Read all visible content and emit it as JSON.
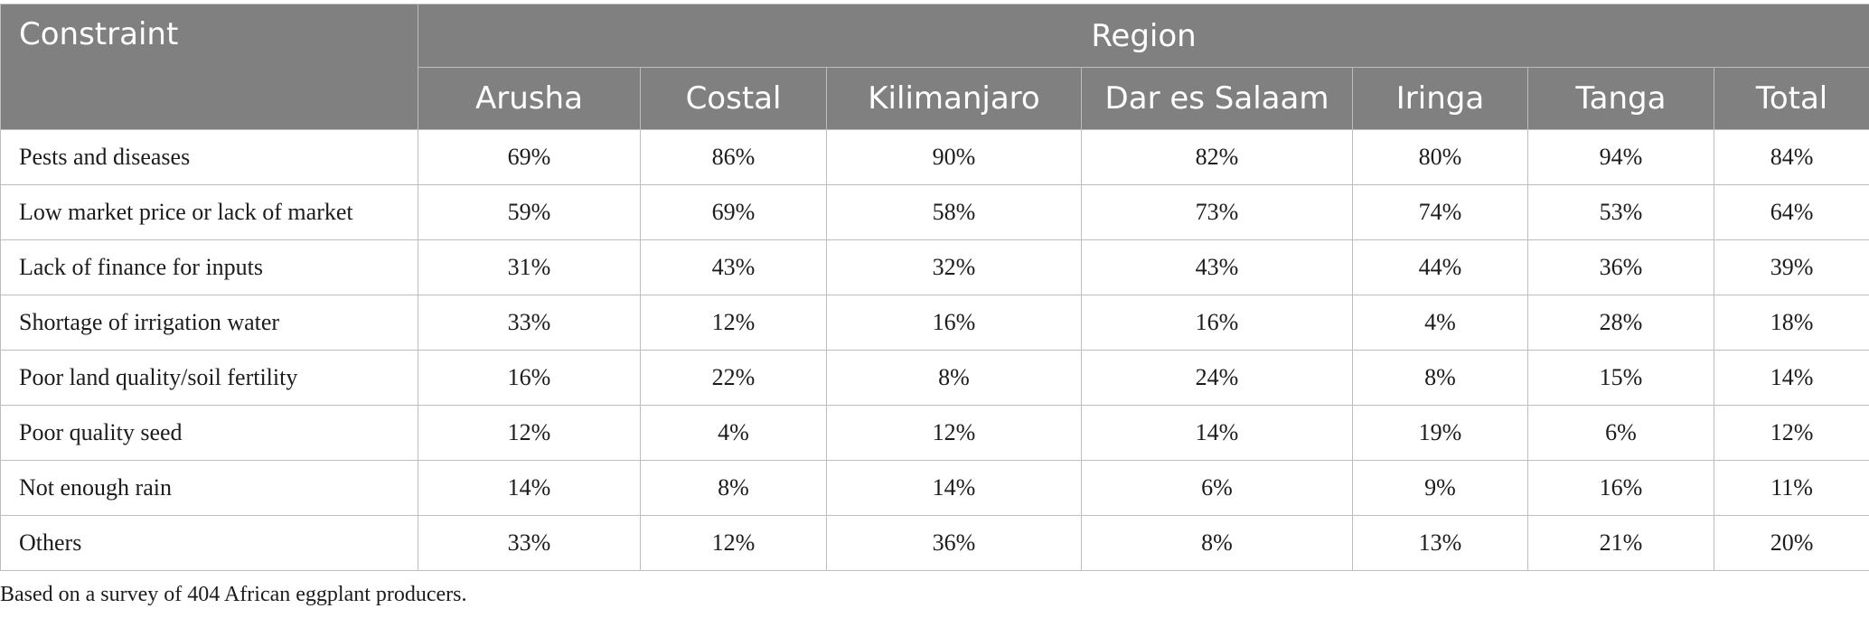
{
  "table": {
    "constraint_header": "Constraint",
    "region_header": "Region",
    "columns": [
      "Arusha",
      "Costal",
      "Kilimanjaro",
      "Dar es Salaam",
      "Iringa",
      "Tanga",
      "Total"
    ],
    "rows": [
      {
        "label": "Pests and diseases",
        "values": [
          "69%",
          "86%",
          "90%",
          "82%",
          "80%",
          "94%",
          "84%"
        ]
      },
      {
        "label": "Low market price or lack of market",
        "values": [
          "59%",
          "69%",
          "58%",
          "73%",
          "74%",
          "53%",
          "64%"
        ]
      },
      {
        "label": "Lack of finance for inputs",
        "values": [
          "31%",
          "43%",
          "32%",
          "43%",
          "44%",
          "36%",
          "39%"
        ]
      },
      {
        "label": "Shortage of irrigation water",
        "values": [
          "33%",
          "12%",
          "16%",
          "16%",
          "4%",
          "28%",
          "18%"
        ]
      },
      {
        "label": "Poor land quality/soil fertility",
        "values": [
          "16%",
          "22%",
          "8%",
          "24%",
          "8%",
          "15%",
          "14%"
        ]
      },
      {
        "label": "Poor quality seed",
        "values": [
          "12%",
          "4%",
          "12%",
          "14%",
          "19%",
          "6%",
          "12%"
        ]
      },
      {
        "label": "Not enough rain",
        "values": [
          "14%",
          "8%",
          "14%",
          "6%",
          "9%",
          "16%",
          "11%"
        ]
      },
      {
        "label": "Others",
        "values": [
          "33%",
          "12%",
          "36%",
          "8%",
          "13%",
          "21%",
          "20%"
        ]
      }
    ]
  },
  "footnote": "Based on a survey of 404 African eggplant producers.",
  "colors": {
    "header_bg": "#7f807f",
    "header_text": "#ffffff",
    "grid": "#bdbdbd",
    "body_text": "#1c1c1c"
  }
}
